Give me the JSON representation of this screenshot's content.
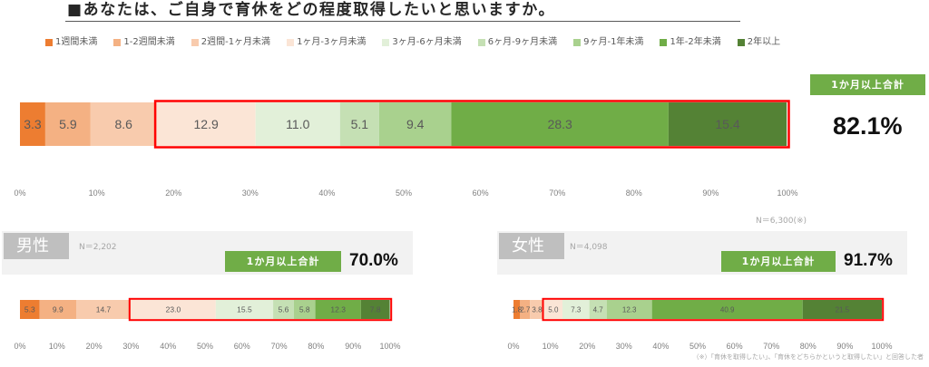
{
  "question": "■あなたは、ご自身で育休をどの程度取得したいと思いますか。",
  "legend": [
    {
      "label": "1週間未満",
      "color": "#ED7D31"
    },
    {
      "label": "1-2週間未満",
      "color": "#F4B183"
    },
    {
      "label": "2週間-1ヶ月未満",
      "color": "#F8CBAD"
    },
    {
      "label": "1ヶ月-3ヶ月未満",
      "color": "#FBE5D6"
    },
    {
      "label": "3ヶ月-6ヶ月未満",
      "color": "#E2F0D9"
    },
    {
      "label": "6ヶ月-9ヶ月未満",
      "color": "#C5E0B4"
    },
    {
      "label": "9ヶ月-1年未満",
      "color": "#A9D18E"
    },
    {
      "label": "1年-2年未満",
      "color": "#70AD47"
    },
    {
      "label": "2年以上",
      "color": "#548235"
    }
  ],
  "highlight_color": "#FF0000",
  "summary_badge_color": "#70AD47",
  "panel_title_color": "#BFBFBF",
  "chart_data": [
    {
      "type": "bar",
      "orientation": "horizontal",
      "stacked": true,
      "sample_size": "N＝6,300(※)",
      "values": [
        3.3,
        5.9,
        8.6,
        12.9,
        11.0,
        5.1,
        9.4,
        28.3,
        15.4
      ],
      "xlim": [
        0,
        100
      ],
      "xticks": [
        "0%",
        "10%",
        "20%",
        "30%",
        "40%",
        "50%",
        "60%",
        "70%",
        "80%",
        "90%",
        "100%"
      ],
      "grid": false,
      "summary": {
        "label": "1か月以上合計",
        "value": "82.1%"
      }
    },
    {
      "type": "bar",
      "orientation": "horizontal",
      "stacked": true,
      "title": "男性",
      "sample_size": "N＝2,202",
      "values": [
        5.3,
        9.9,
        14.7,
        23.0,
        15.5,
        5.6,
        5.8,
        12.3,
        7.8
      ],
      "xlim": [
        0,
        100
      ],
      "xticks": [
        "0%",
        "10%",
        "20%",
        "30%",
        "40%",
        "50%",
        "60%",
        "70%",
        "80%",
        "90%",
        "100%"
      ],
      "grid": false,
      "summary": {
        "label": "1か月以上合計",
        "value": "70.0%"
      }
    },
    {
      "type": "bar",
      "orientation": "horizontal",
      "stacked": true,
      "title": "女性",
      "sample_size": "N＝4,098",
      "values": [
        1.8,
        2.7,
        3.8,
        5.0,
        7.3,
        4.7,
        12.3,
        40.9,
        21.5
      ],
      "xlim": [
        0,
        100
      ],
      "xticks": [
        "0%",
        "10%",
        "20%",
        "30%",
        "40%",
        "50%",
        "60%",
        "70%",
        "80%",
        "90%",
        "100%"
      ],
      "grid": false,
      "summary": {
        "label": "1か月以上合計",
        "value": "91.7%"
      }
    }
  ],
  "footnote": "（※）「育休を取得したい」、「育休をどちらかというと取得したい」と回答した者"
}
